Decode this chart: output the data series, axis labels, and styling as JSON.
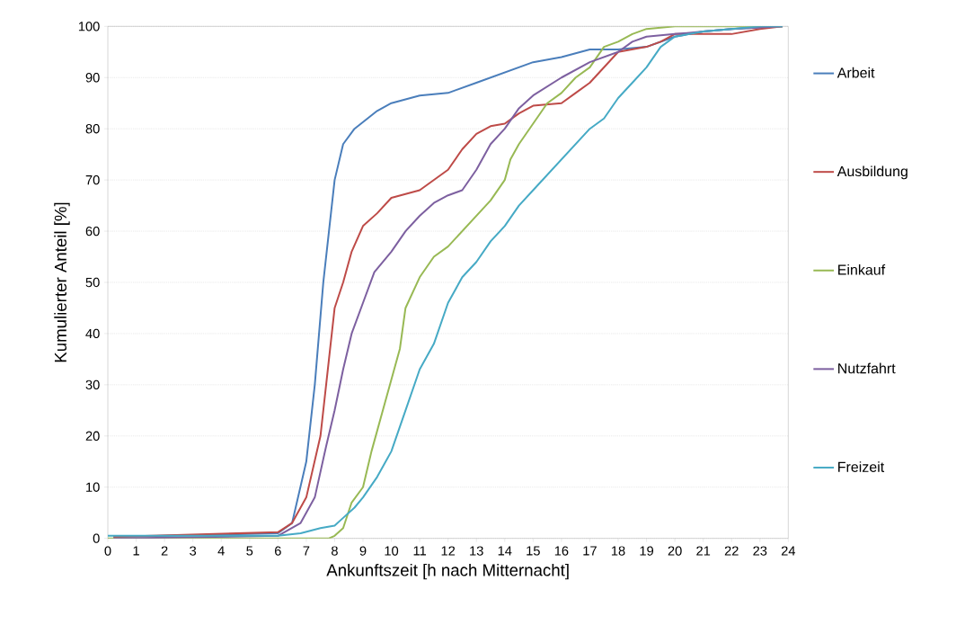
{
  "chart_data": {
    "type": "line",
    "xlabel": "Ankunftszeit [h nach Mitternacht]",
    "ylabel": "Kumulierter Anteil [%]",
    "xlim": [
      0,
      24
    ],
    "ylim": [
      0,
      100
    ],
    "xticks": [
      0,
      1,
      2,
      3,
      4,
      5,
      6,
      7,
      8,
      9,
      10,
      11,
      12,
      13,
      14,
      15,
      16,
      17,
      18,
      19,
      20,
      21,
      22,
      23,
      24
    ],
    "yticks": [
      0,
      10,
      20,
      30,
      40,
      50,
      60,
      70,
      80,
      90,
      100
    ],
    "grid": "y",
    "legend": "right",
    "marker": "none",
    "line_style": "solid",
    "series": [
      {
        "name": "Arbeit",
        "color": "#4a7ebb",
        "x": [
          0.2,
          6,
          6.5,
          7,
          7.3,
          7.6,
          7.8,
          8,
          8.3,
          8.7,
          9.5,
          10,
          11,
          12,
          13,
          14,
          15,
          16,
          17,
          18,
          19,
          20,
          21,
          22,
          23,
          23.8
        ],
        "values": [
          0.3,
          1,
          3,
          15,
          30,
          50,
          60,
          70,
          77,
          80,
          83.5,
          85,
          86.5,
          87,
          89,
          91,
          93,
          94,
          95.5,
          95.5,
          96,
          98,
          99,
          99.5,
          99.8,
          100
        ]
      },
      {
        "name": "Ausbildung",
        "color": "#be4b48",
        "x": [
          0.2,
          6,
          6.5,
          7,
          7.5,
          7.8,
          8,
          8.3,
          8.6,
          9,
          9.5,
          10,
          11,
          11.5,
          12,
          12.5,
          13,
          13.5,
          14,
          14.5,
          15,
          16,
          16.5,
          17,
          17.5,
          18,
          19,
          19.5,
          20,
          21,
          22,
          23,
          23.8
        ],
        "values": [
          0.3,
          1.2,
          3,
          8,
          20,
          35,
          45,
          50,
          56,
          61,
          63.5,
          66.5,
          68,
          70,
          72,
          76,
          79,
          80.5,
          81,
          83,
          84.5,
          85,
          87,
          89,
          92,
          95,
          96,
          97,
          98.5,
          98.5,
          98.5,
          99.5,
          100
        ]
      },
      {
        "name": "Einkauf",
        "color": "#98b954",
        "x": [
          0,
          7.8,
          8,
          8.3,
          8.6,
          9,
          9.3,
          9.7,
          10,
          10.3,
          10.5,
          11,
          11.5,
          12,
          12.5,
          13,
          13.5,
          14,
          14.2,
          14.5,
          15,
          15.5,
          16,
          16.5,
          17,
          17.5,
          18,
          18.5,
          19,
          20,
          23.8
        ],
        "values": [
          0,
          0,
          0.5,
          2,
          7,
          10,
          17,
          25,
          31,
          37,
          45,
          51,
          55,
          57,
          60,
          63,
          66,
          70,
          74,
          77,
          81,
          85,
          87,
          90,
          92,
          96,
          97,
          98.5,
          99.5,
          100,
          100
        ]
      },
      {
        "name": "Nutzfahrt",
        "color": "#7d60a0",
        "x": [
          0.2,
          6,
          6.8,
          7.3,
          7.7,
          8,
          8.3,
          8.6,
          9,
          9.4,
          10,
          10.5,
          11,
          11.5,
          12,
          12.5,
          13,
          13.5,
          14,
          14.5,
          15,
          16,
          17,
          18,
          18.5,
          19,
          20,
          21,
          22,
          23,
          23.8
        ],
        "values": [
          0,
          0.5,
          3,
          8,
          18,
          25,
          33,
          40,
          46,
          52,
          56,
          60,
          63,
          65.5,
          67,
          68,
          72,
          77,
          80,
          84,
          86.5,
          90,
          93,
          95,
          97,
          98,
          98.5,
          99,
          99.5,
          99.8,
          100
        ]
      },
      {
        "name": "Freizeit",
        "color": "#46aac5",
        "x": [
          0,
          6,
          6.8,
          7.5,
          8,
          8.3,
          8.7,
          9,
          9.5,
          10,
          10.5,
          11,
          11.5,
          12,
          12.5,
          13,
          13.5,
          14,
          14.5,
          15,
          15.5,
          16,
          16.5,
          17,
          17.5,
          18,
          18.5,
          19,
          19.5,
          20,
          21,
          22,
          23,
          23.8
        ],
        "values": [
          0.5,
          0.5,
          1,
          2,
          2.5,
          4,
          6,
          8,
          12,
          17,
          25,
          33,
          38,
          46,
          51,
          54,
          58,
          61,
          65,
          68,
          71,
          74,
          77,
          80,
          82,
          86,
          89,
          92,
          96,
          98,
          99,
          99.5,
          100,
          100
        ]
      }
    ]
  }
}
